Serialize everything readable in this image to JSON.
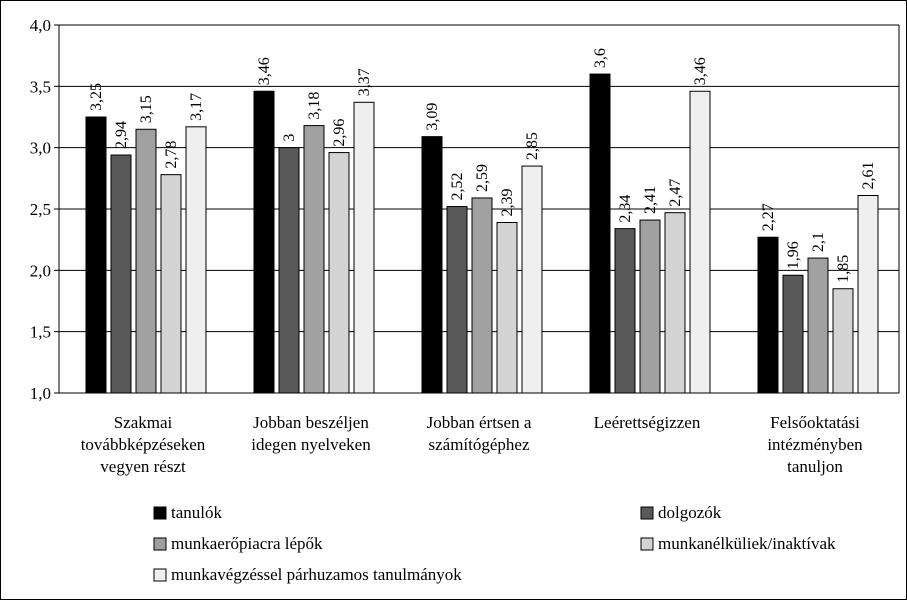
{
  "chart_data": {
    "type": "bar",
    "title": "",
    "xlabel": "",
    "ylabel": "",
    "ylim": [
      1.0,
      4.0
    ],
    "yticks": [
      "1,0",
      "1,5",
      "2,0",
      "2,5",
      "3,0",
      "3,5",
      "4,0"
    ],
    "grid": true,
    "legend_position": "bottom",
    "categories": [
      [
        "Szakmai",
        "továbbképzéseken",
        "vegyen részt"
      ],
      [
        "Jobban beszéljen",
        "idegen nyelveken"
      ],
      [
        "Jobban értsen a",
        "számítógéphez"
      ],
      [
        "Leérettségizzen"
      ],
      [
        "Felsőoktatási",
        "intézményben",
        "tanuljon"
      ]
    ],
    "series": [
      {
        "name": "tanulók",
        "color": "#000000",
        "values": [
          3.25,
          3.46,
          3.09,
          3.6,
          2.27
        ],
        "labels": [
          "3,25",
          "3,46",
          "3,09",
          "3,6",
          "2,27"
        ]
      },
      {
        "name": "dolgozók",
        "color": "#595959",
        "values": [
          2.94,
          3.0,
          2.52,
          2.34,
          1.96
        ],
        "labels": [
          "2,94",
          "3",
          "2,52",
          "2,34",
          "1,96"
        ]
      },
      {
        "name": "munkaerőpiacra lépők",
        "color": "#a0a0a0",
        "values": [
          3.15,
          3.18,
          2.59,
          2.41,
          2.1
        ],
        "labels": [
          "3,15",
          "3,18",
          "2,59",
          "2,41",
          "2,1"
        ]
      },
      {
        "name": "munkanélküliek/inaktívak",
        "color": "#d3d3d3",
        "values": [
          2.78,
          2.96,
          2.39,
          2.47,
          1.85
        ],
        "labels": [
          "2,78",
          "2,96",
          "2,39",
          "2,47",
          "1,85"
        ]
      },
      {
        "name": "munkavégzéssel párhuzamos tanulmányok",
        "color": "#eeeeee",
        "values": [
          3.17,
          3.37,
          2.85,
          3.46,
          2.61
        ],
        "labels": [
          "3,17",
          "3,37",
          "2,85",
          "3,46",
          "2,61"
        ]
      }
    ]
  }
}
